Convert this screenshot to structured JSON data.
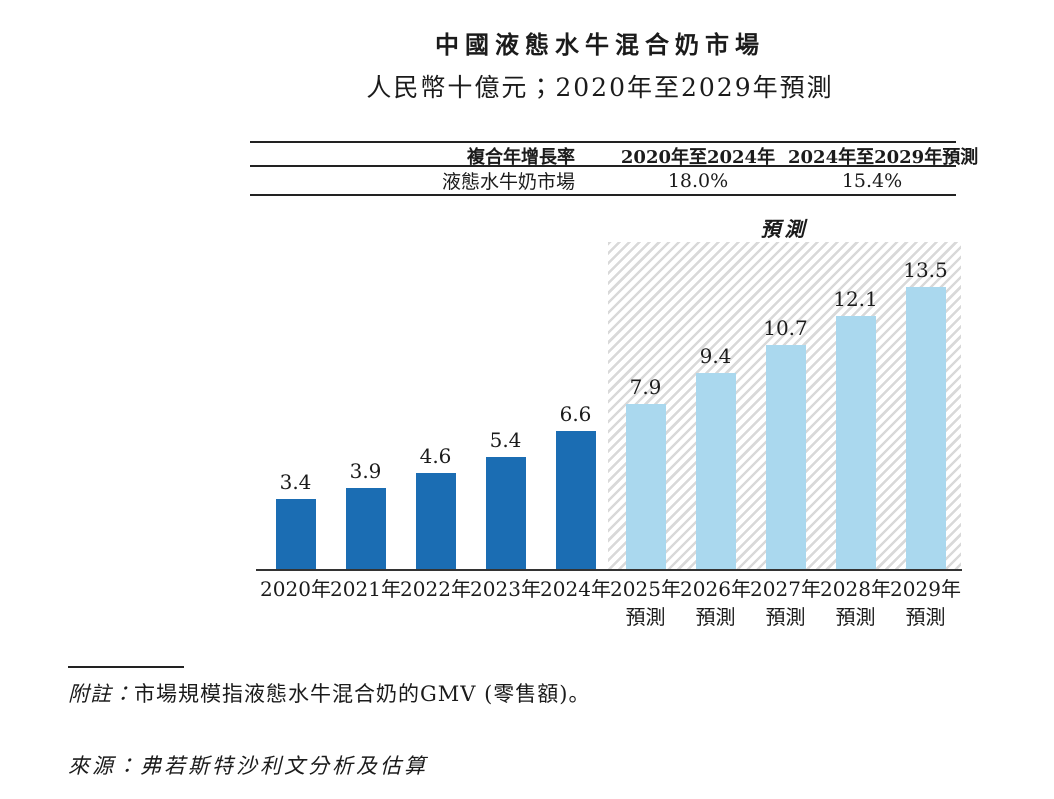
{
  "page": {
    "title": "中國液態水牛混合奶市場",
    "subtitle": "人民幣十億元；2020年至2029年預測"
  },
  "cagr_table": {
    "col_headers": [
      "複合年增長率",
      "2020年至2024年",
      "2024年至2029年預測"
    ],
    "rows": [
      [
        "液態水牛奶市場",
        "18.0%",
        "15.4%"
      ]
    ]
  },
  "chart_data": {
    "type": "bar",
    "title": "中國液態水牛混合奶市場",
    "unit_label": "人民幣十億元",
    "categories": [
      "2020年",
      "2021年",
      "2022年",
      "2023年",
      "2024年",
      "2025年預測",
      "2026年預測",
      "2027年預測",
      "2028年預測",
      "2029年預測"
    ],
    "values": [
      3.4,
      3.9,
      4.6,
      5.4,
      6.6,
      7.9,
      9.4,
      10.7,
      12.1,
      13.5
    ],
    "value_labels": [
      "3.4",
      "3.9",
      "4.6",
      "5.4",
      "6.6",
      "7.9",
      "9.4",
      "10.7",
      "12.1",
      "13.5"
    ],
    "forecast_start_index": 5,
    "forecast_label": "預測",
    "historical_bar_color": "#1b6db3",
    "forecast_bar_color": "#aad8ee",
    "hatch_stripe_color": "#d9d9d9",
    "axis_color": "#333333",
    "ylim": [
      0,
      15
    ],
    "grid": false,
    "legend": "none"
  },
  "x_axis": {
    "tick_lines": [
      [
        "2020年"
      ],
      [
        "2021年"
      ],
      [
        "2022年"
      ],
      [
        "2023年"
      ],
      [
        "2024年"
      ],
      [
        "2025年",
        "預測"
      ],
      [
        "2026年",
        "預測"
      ],
      [
        "2027年",
        "預測"
      ],
      [
        "2028年",
        "預測"
      ],
      [
        "2029年",
        "預測"
      ]
    ]
  },
  "footer": {
    "note_label": "附註：",
    "note_text": "市場規模指液態水牛混合奶的GMV (零售額)。",
    "source": "來源：弗若斯特沙利文分析及估算"
  }
}
